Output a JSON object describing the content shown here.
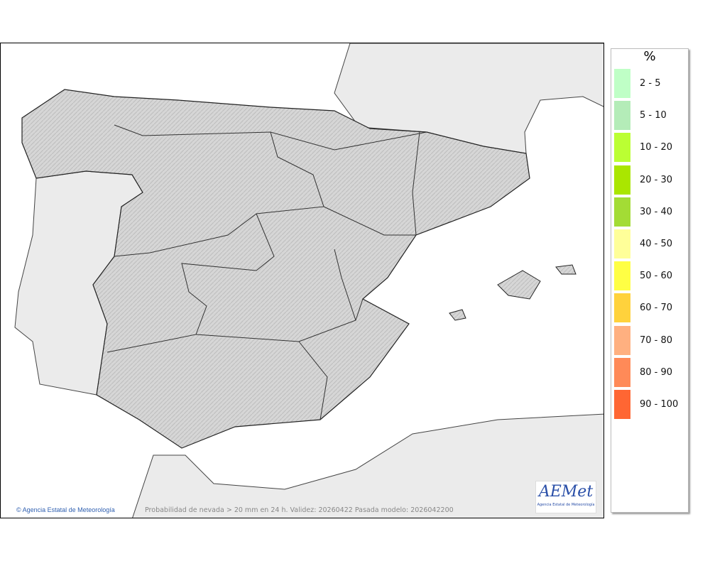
{
  "legend": {
    "unit": "%",
    "items": [
      {
        "label": "2 - 5",
        "color": "#bfffc6"
      },
      {
        "label": "5 - 10",
        "color": "#b4ecb8"
      },
      {
        "label": "10 - 20",
        "color": "#bbff33"
      },
      {
        "label": "20 - 30",
        "color": "#aae600"
      },
      {
        "label": "30 - 40",
        "color": "#a3dc35"
      },
      {
        "label": "40 - 50",
        "color": "#ffff99"
      },
      {
        "label": "50 - 60",
        "color": "#ffff44"
      },
      {
        "label": "60 - 70",
        "color": "#ffd23c"
      },
      {
        "label": "70 - 80",
        "color": "#ffb080"
      },
      {
        "label": "80 - 90",
        "color": "#ff8a58"
      },
      {
        "label": "90 - 100",
        "color": "#ff6633"
      }
    ]
  },
  "credit": "© Agencia Estatal de Meteorología",
  "caption": "Probabilidad de nevada > 20 mm en 24 h. Validez: 20260422 Pasada modelo: 2026042200",
  "logo": {
    "word": "AEMet",
    "sub": "Agencia Estatal de Meteorología"
  }
}
